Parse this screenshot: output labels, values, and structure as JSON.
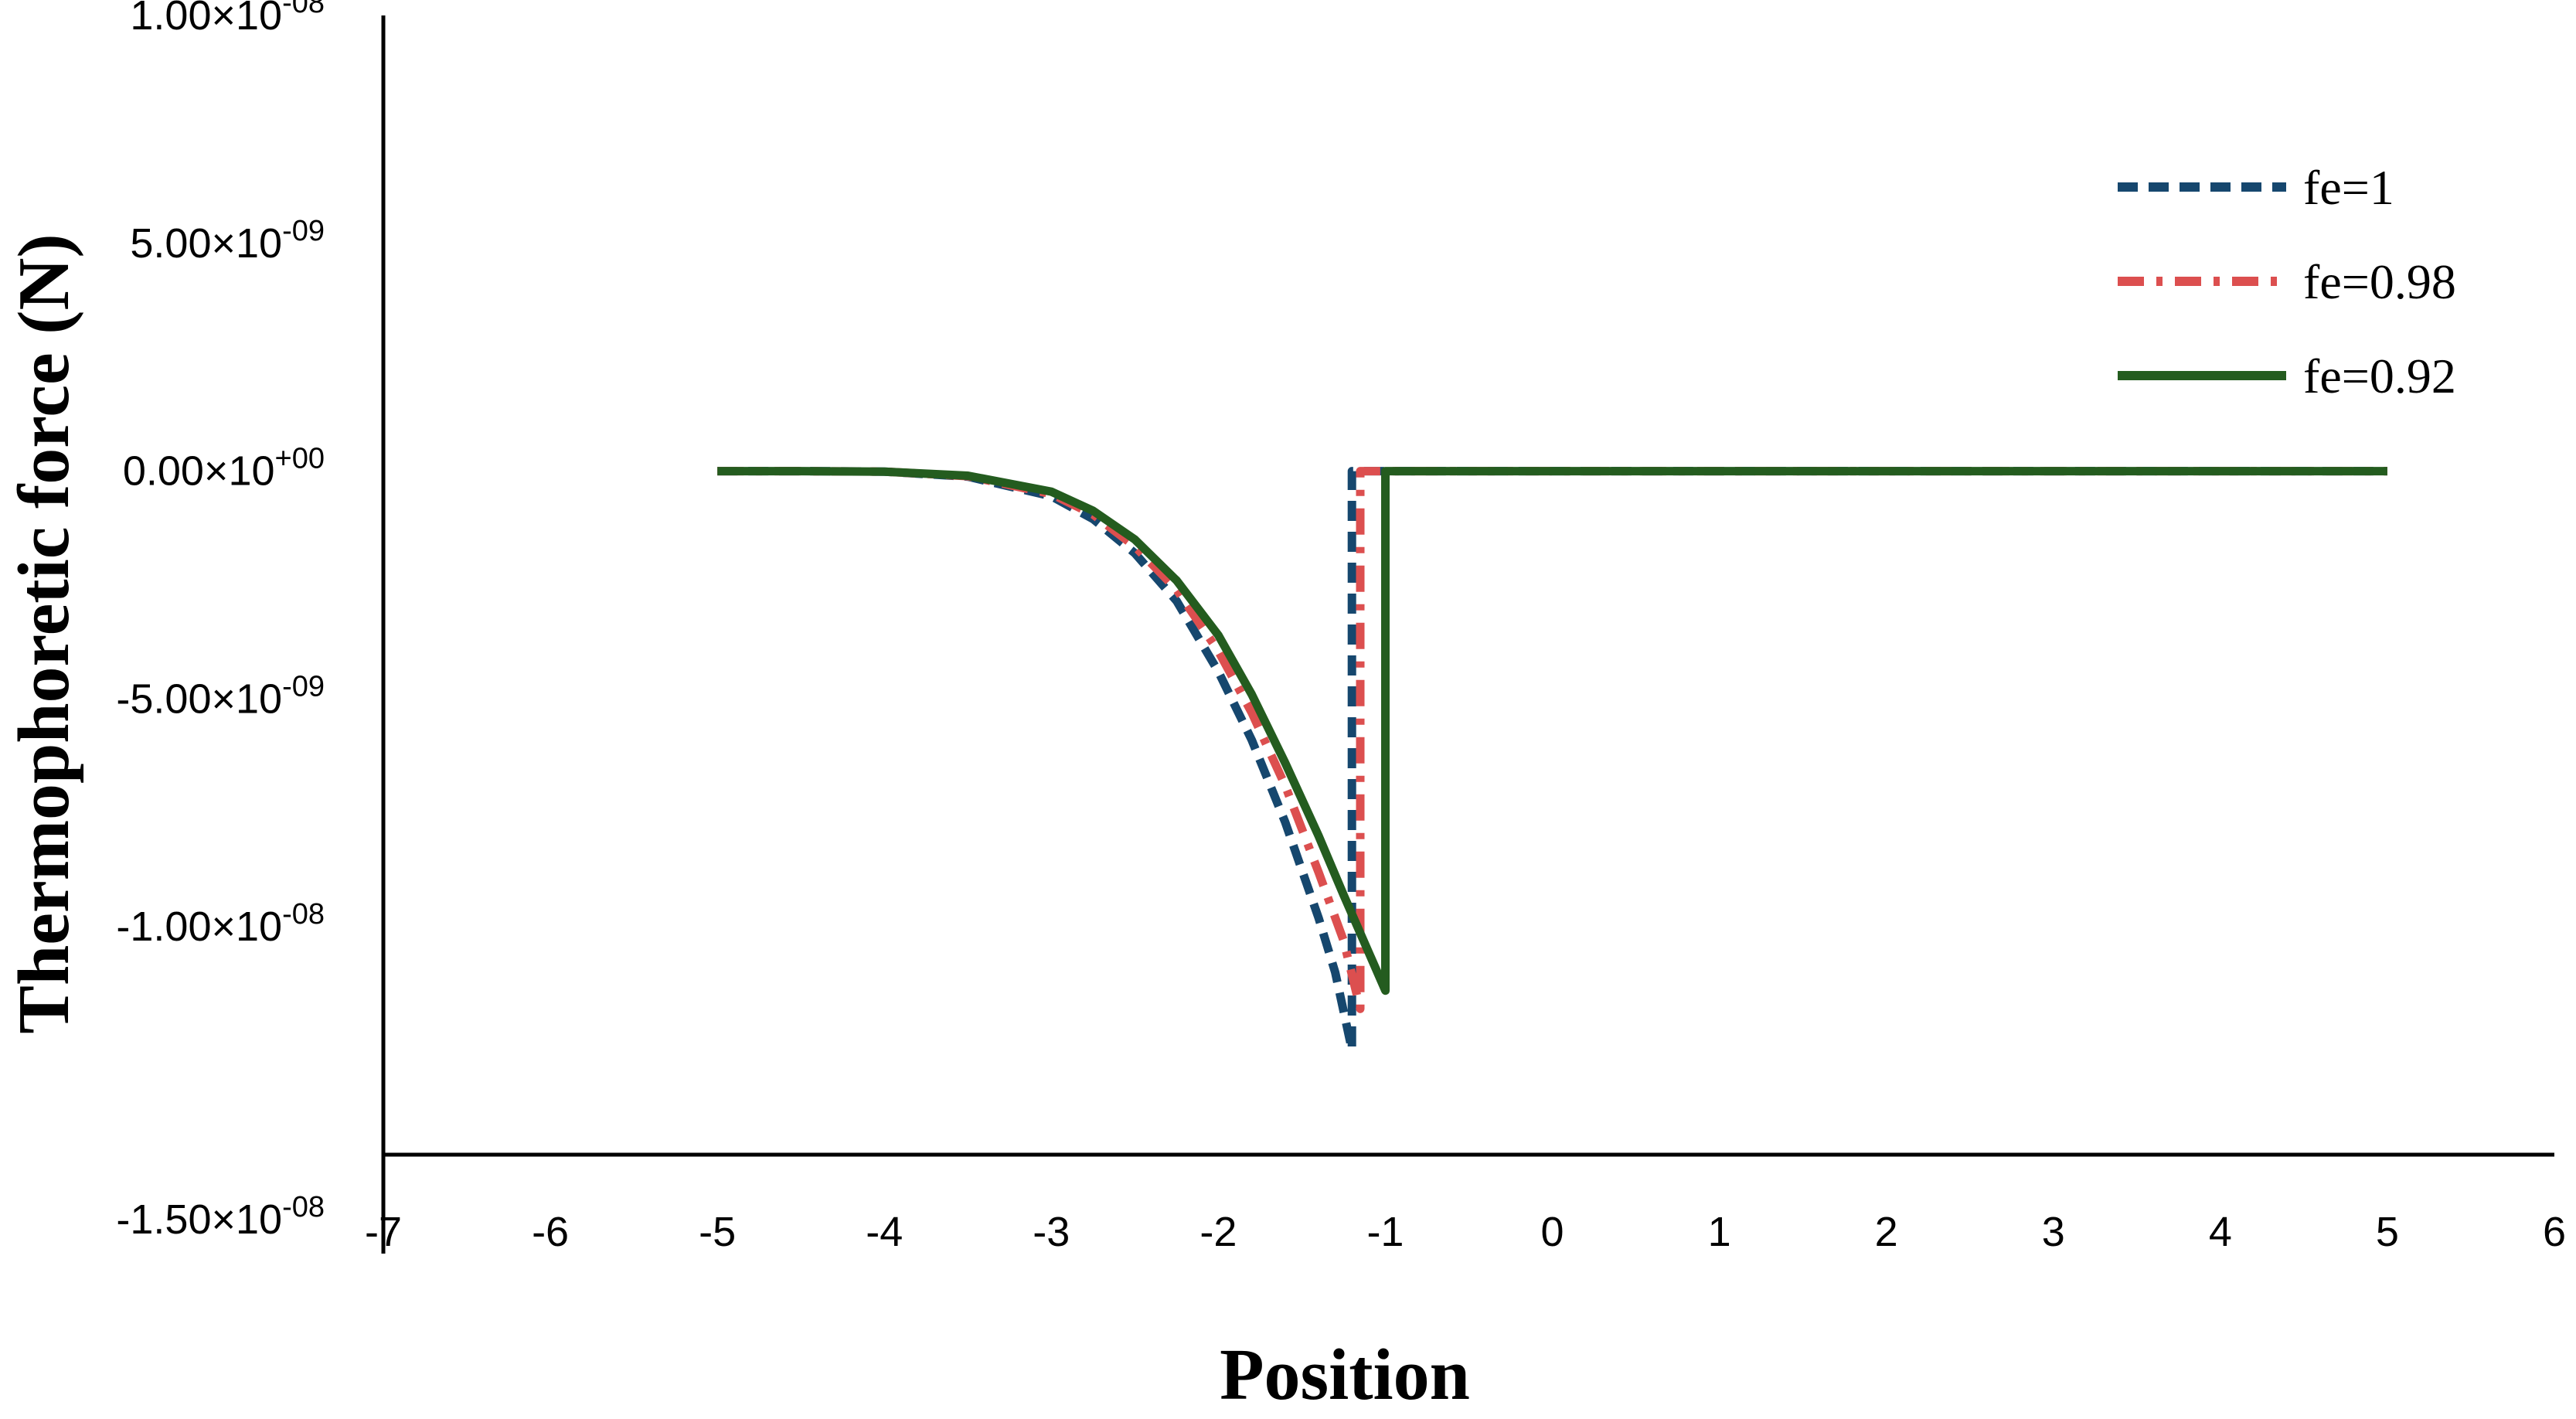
{
  "chart_data": {
    "type": "line",
    "title": "",
    "xlabel": "Position",
    "ylabel": "Thermophoretic force (N)",
    "xlim": [
      -7,
      6
    ],
    "ylim": [
      -1.5e-08,
      1e-08
    ],
    "x_ticks": [
      {
        "value": -7,
        "label": "-7"
      },
      {
        "value": -6,
        "label": "-6"
      },
      {
        "value": -5,
        "label": "-5"
      },
      {
        "value": -4,
        "label": "-4"
      },
      {
        "value": -3,
        "label": "-3"
      },
      {
        "value": -2,
        "label": "-2"
      },
      {
        "value": -1,
        "label": "-1"
      },
      {
        "value": 0,
        "label": "0"
      },
      {
        "value": 1,
        "label": "1"
      },
      {
        "value": 2,
        "label": "2"
      },
      {
        "value": 3,
        "label": "3"
      },
      {
        "value": 4,
        "label": "4"
      },
      {
        "value": 5,
        "label": "5"
      },
      {
        "value": 6,
        "label": "6"
      }
    ],
    "y_ticks": [
      {
        "value": 1e-08,
        "mantissa": "1.00×10",
        "exponent": "-08"
      },
      {
        "value": 5e-09,
        "mantissa": "5.00×10",
        "exponent": "-09"
      },
      {
        "value": 0,
        "mantissa": "0.00×10",
        "exponent": "+00"
      },
      {
        "value": -5e-09,
        "mantissa": "-5.00×10",
        "exponent": "-09"
      },
      {
        "value": -1e-08,
        "mantissa": "-1.00×10",
        "exponent": "-08"
      },
      {
        "value": -1.5e-08,
        "mantissa": "-1.50×10",
        "exponent": "-08"
      }
    ],
    "grid": false,
    "legend_position": "top-right",
    "series": [
      {
        "name": "fe=1",
        "color": "#16476e",
        "style": "dashed",
        "x": [
          -5,
          -4.5,
          -4,
          -3.5,
          -3,
          -2.75,
          -2.5,
          -2.25,
          -2,
          -1.8,
          -1.6,
          -1.4,
          -1.3,
          -1.2,
          -1.2,
          5
        ],
        "y": [
          0,
          0,
          -1e-11,
          -1.2e-10,
          -5.5e-10,
          -1.05e-09,
          -1.8e-09,
          -2.85e-09,
          -4.4e-09,
          -5.9e-09,
          -7.7e-09,
          -9.8e-09,
          -1.1e-08,
          -1.27e-08,
          0,
          0
        ]
      },
      {
        "name": "fe=0.98",
        "color": "#dc4f4f",
        "style": "dashdot",
        "x": [
          -5,
          -4.5,
          -4,
          -3.5,
          -3,
          -2.75,
          -2.5,
          -2.25,
          -2,
          -1.8,
          -1.6,
          -1.4,
          -1.25,
          -1.15,
          -1.15,
          5
        ],
        "y": [
          0,
          0,
          -1e-11,
          -1.1e-10,
          -5e-10,
          -9.5e-10,
          -1.65e-09,
          -2.6e-09,
          -3.95e-09,
          -5.3e-09,
          -6.9e-09,
          -8.8e-09,
          -1.03e-08,
          -1.18e-08,
          0,
          0
        ]
      },
      {
        "name": "fe=0.92",
        "color": "#245c1f",
        "style": "solid",
        "x": [
          -5,
          -4.5,
          -4,
          -3.5,
          -3,
          -2.75,
          -2.5,
          -2.25,
          -2,
          -1.8,
          -1.6,
          -1.4,
          -1.25,
          -1.0,
          -1.0,
          5
        ],
        "y": [
          0,
          0,
          -1e-11,
          -1e-10,
          -4.5e-10,
          -8.7e-10,
          -1.5e-09,
          -2.4e-09,
          -3.6e-09,
          -4.9e-09,
          -6.4e-09,
          -8e-09,
          -9.3e-09,
          -1.14e-08,
          0,
          0
        ]
      }
    ]
  }
}
